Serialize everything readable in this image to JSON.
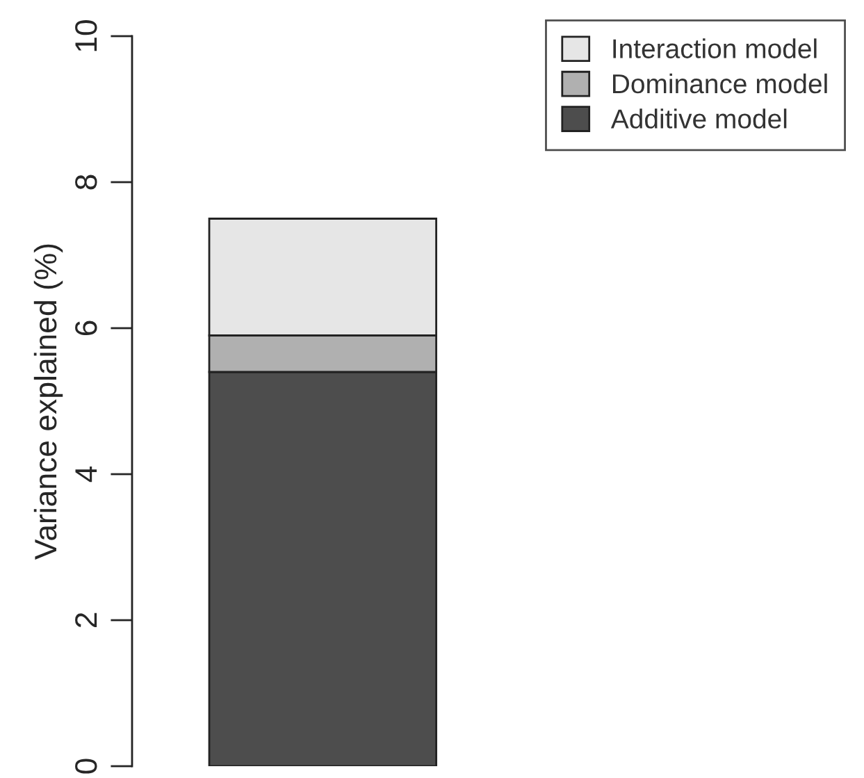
{
  "chart_data": {
    "type": "bar",
    "ylabel": "Variance explained (%)",
    "categories": [
      null
    ],
    "stacked": true,
    "series": [
      {
        "name": "Additive model",
        "color": "#4d4d4d",
        "values": [
          5.4
        ]
      },
      {
        "name": "Dominance model",
        "color": "#b0b0b0",
        "values": [
          0.5
        ]
      },
      {
        "name": "Interaction model",
        "color": "#e6e6e6",
        "values": [
          1.6
        ]
      }
    ],
    "ylim": [
      0,
      10
    ],
    "yticks": [
      0,
      2,
      4,
      6,
      8,
      10
    ],
    "grid": false,
    "legend": "top right",
    "tick_labels": "y"
  }
}
